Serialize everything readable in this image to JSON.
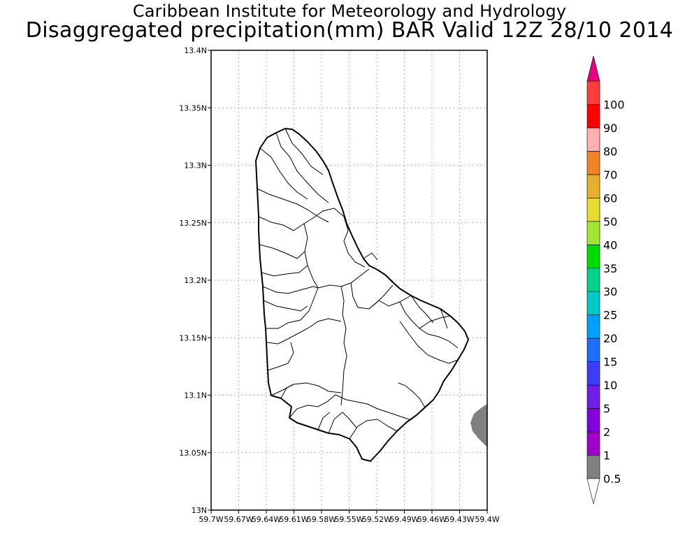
{
  "title": {
    "line1": "Caribbean Institute for Meteorology and Hydrology",
    "line2": "Disaggregated precipitation(mm) BAR Valid 12Z 28/10 2014"
  },
  "map": {
    "y_ticks": [
      "13N",
      "13.05N",
      "13.1N",
      "13.15N",
      "13.2N",
      "13.25N",
      "13.3N",
      "13.35N",
      "13.4N"
    ],
    "x_ticks": [
      "59.7W",
      "59.67W",
      "59.64W",
      "59.61W",
      "59.58W",
      "59.55W",
      "59.52W",
      "59.49W",
      "59.46W",
      "59.43W",
      "59.4W"
    ],
    "lat_range": [
      13.0,
      13.4
    ],
    "lon_range": [
      -59.7,
      -59.4
    ],
    "grid": true,
    "land_color": "#ffffff",
    "precip_patch_color": "#808080"
  },
  "colorbar": {
    "levels": [
      "0.5",
      "1",
      "2",
      "5",
      "10",
      "15",
      "20",
      "25",
      "30",
      "35",
      "40",
      "50",
      "60",
      "70",
      "80",
      "90",
      "100"
    ],
    "colors": [
      "#808080",
      "#a000c8",
      "#8200dc",
      "#6e1ee6",
      "#3c3cff",
      "#1e6eff",
      "#00a0ff",
      "#00c8c8",
      "#00d28c",
      "#00dc00",
      "#a0e632",
      "#e6dc32",
      "#e6af2d",
      "#f08228",
      "#ffafaf",
      "#ff0000",
      "#ff3c3c"
    ],
    "below_color": "#ffffff",
    "above_color": "#e6007e"
  }
}
